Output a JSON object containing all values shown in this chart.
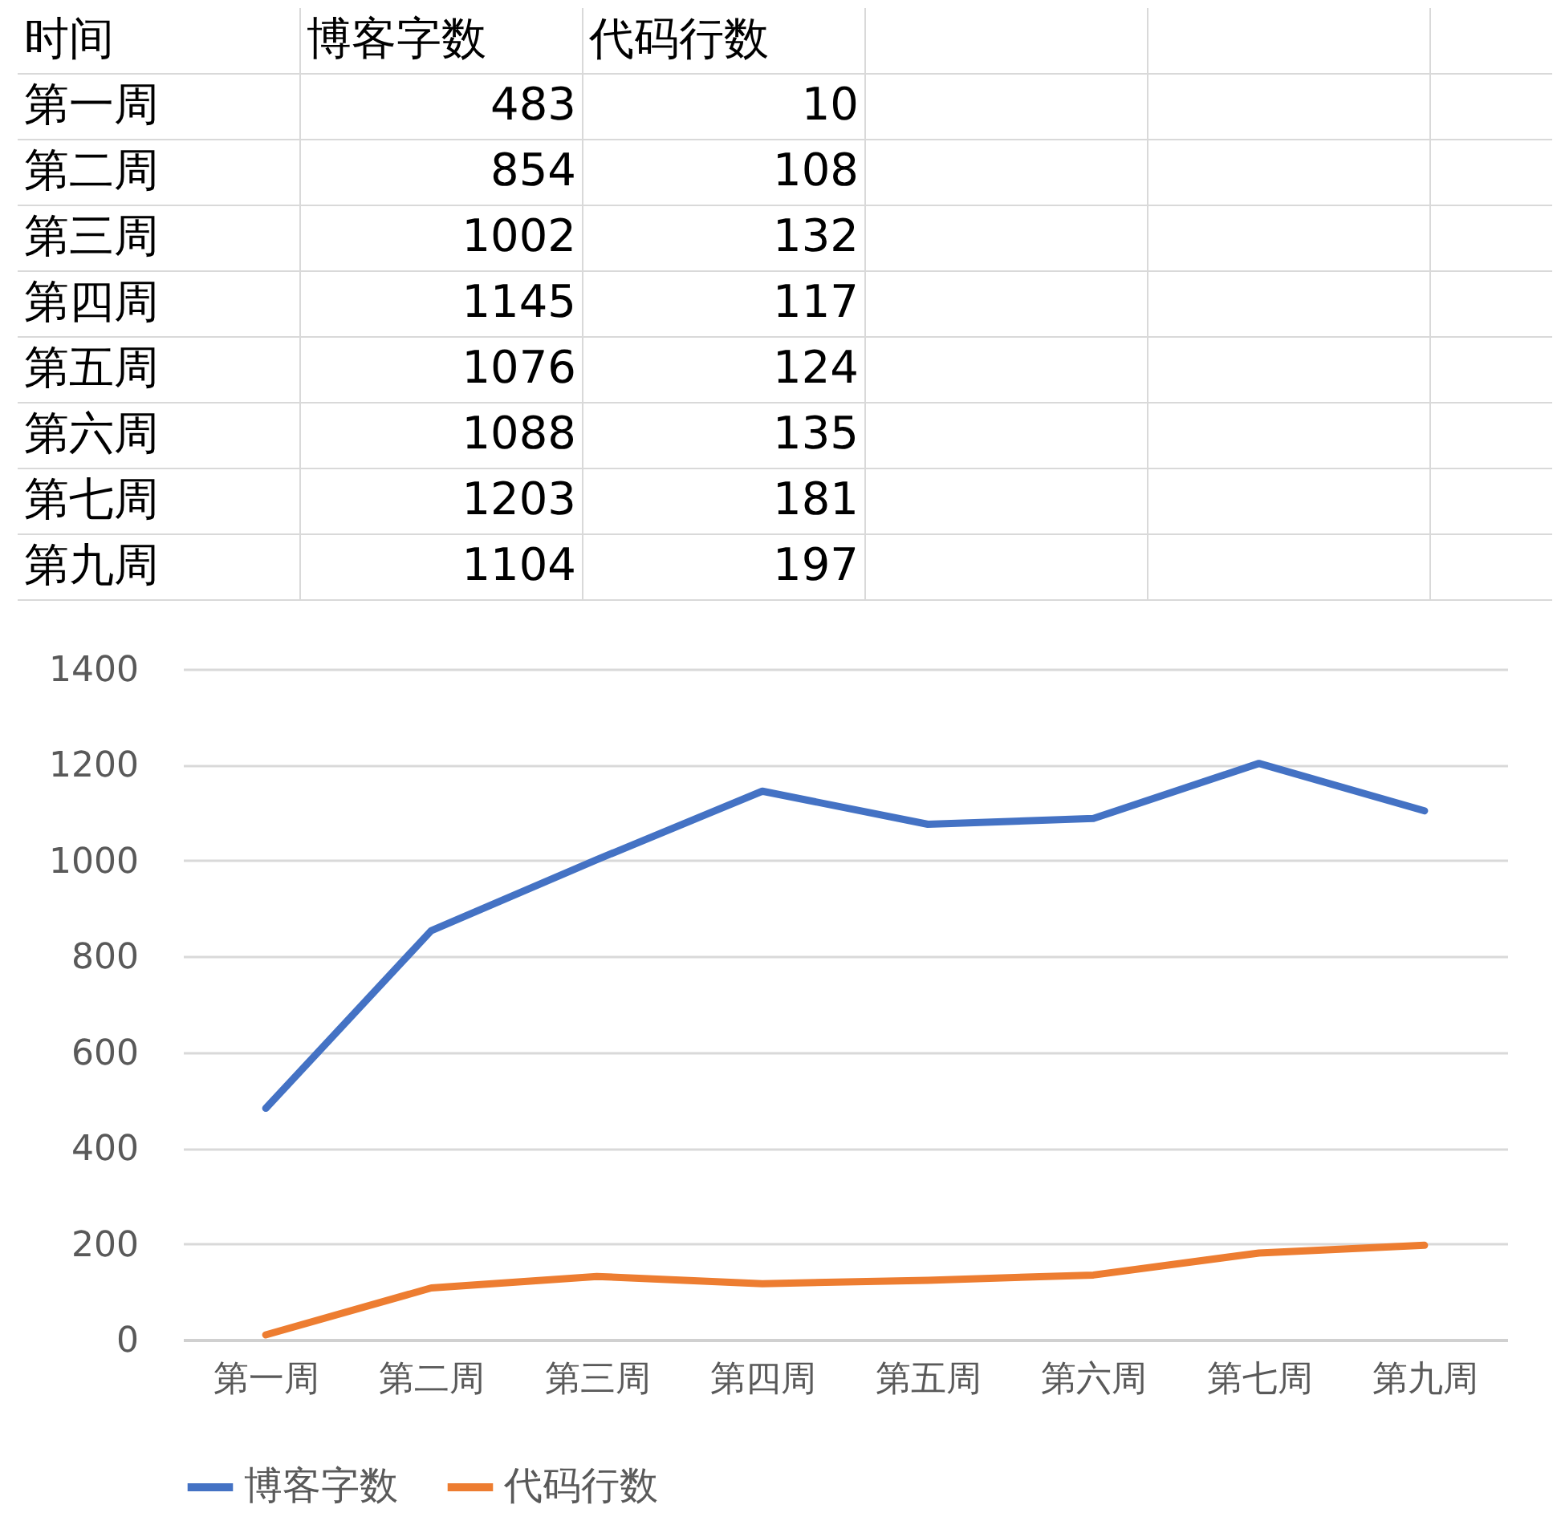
{
  "chart_data": [
    {
      "type": "other",
      "categories": [
        "第一周",
        "第二周",
        "第三周",
        "第四周",
        "第五周",
        "第六周",
        "第七周",
        "第九周"
      ],
      "series": [
        {
          "name": "博客字数",
          "values": [
            483,
            854,
            1002,
            1145,
            1076,
            1088,
            1203,
            1104
          ],
          "value_labels": [
            "483",
            "854",
            "1002",
            "1145",
            "1076",
            "1088",
            "1203",
            "1104"
          ]
        },
        {
          "name": "代码行数",
          "values": [
            10,
            108,
            132,
            117,
            124,
            135,
            181,
            197
          ],
          "value_labels": [
            "10",
            "108",
            "132",
            "117",
            "124",
            "135",
            "181",
            "197"
          ]
        }
      ],
      "annotations": [
        "时间"
      ]
    },
    {
      "type": "line",
      "categories": [
        "第一周",
        "第二周",
        "第三周",
        "第四周",
        "第五周",
        "第六周",
        "第七周",
        "第九周"
      ],
      "series": [
        {
          "name": "博客字数",
          "color": "#4472c4",
          "values": [
            483,
            854,
            1002,
            1145,
            1076,
            1088,
            1203,
            1104
          ]
        },
        {
          "name": "代码行数",
          "color": "#ed7d31",
          "values": [
            10,
            108,
            132,
            117,
            124,
            135,
            181,
            197
          ]
        }
      ],
      "ylim": [
        0,
        1400
      ],
      "yticks": [
        0,
        200,
        400,
        600,
        800,
        1000,
        1200,
        1400
      ],
      "grid": "y",
      "legend": "bottom"
    }
  ]
}
